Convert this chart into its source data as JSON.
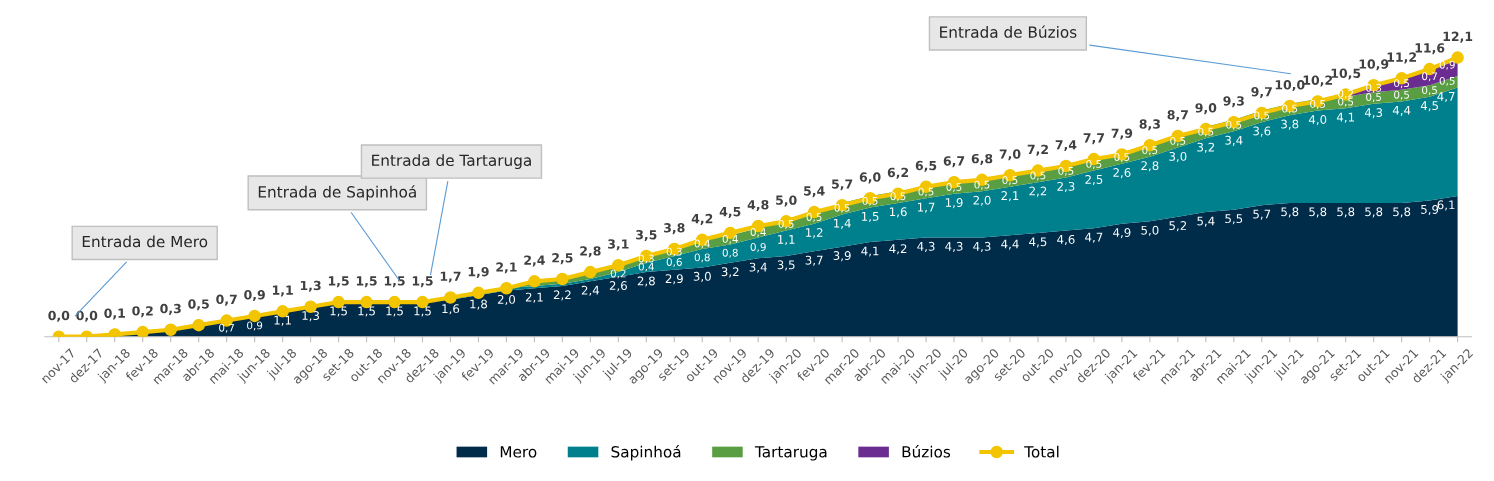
{
  "chart_data": {
    "type": "area",
    "stacked": true,
    "categories": [
      "nov-17",
      "dez-17",
      "jan-18",
      "fev-18",
      "mar-18",
      "abr-18",
      "mai-18",
      "jun-18",
      "jul-18",
      "ago-18",
      "set-18",
      "out-18",
      "nov-18",
      "dez-18",
      "jan-19",
      "fev-19",
      "mar-19",
      "abr-19",
      "mai-19",
      "jun-19",
      "jul-19",
      "ago-19",
      "set-19",
      "out-19",
      "nov-19",
      "dez-19",
      "jan-20",
      "fev-20",
      "mar-20",
      "abr-20",
      "mai-20",
      "jun-20",
      "jul-20",
      "ago-20",
      "set-20",
      "out-20",
      "nov-20",
      "dez-20",
      "jan-21",
      "fev-21",
      "mar-21",
      "abr-21",
      "mai-21",
      "jun-21",
      "jul-21",
      "ago-21",
      "set-21",
      "out-21",
      "nov-21",
      "dez-21",
      "jan-22"
    ],
    "series": [
      {
        "name": "Mero",
        "color": "#002b49",
        "values": [
          0.0,
          0.0,
          0.1,
          0.2,
          0.3,
          0.5,
          0.7,
          0.9,
          1.1,
          1.3,
          1.5,
          1.5,
          1.5,
          1.5,
          1.6,
          1.8,
          2.0,
          2.1,
          2.2,
          2.4,
          2.6,
          2.8,
          2.9,
          3.0,
          3.2,
          3.4,
          3.5,
          3.7,
          3.9,
          4.1,
          4.2,
          4.3,
          4.3,
          4.3,
          4.4,
          4.5,
          4.6,
          4.7,
          4.9,
          5.0,
          5.2,
          5.4,
          5.5,
          5.7,
          5.8,
          5.8,
          5.8,
          5.8,
          5.8,
          5.9,
          6.1
        ],
        "value_labels": [
          null,
          null,
          null,
          null,
          null,
          null,
          "0,7",
          "0,9",
          "1,1",
          "1,3",
          "1,5",
          "1,5",
          "1,5",
          "1,5",
          "1,6",
          "1,8",
          "2,0",
          "2,1",
          "2,2",
          "2,4",
          "2,6",
          "2,8",
          "2,9",
          "3,0",
          "3,2",
          "3,4",
          "3,5",
          "3,7",
          "3,9",
          "4,1",
          "4,2",
          "4,3",
          "4,3",
          "4,3",
          "4,4",
          "4,5",
          "4,6",
          "4,7",
          "4,9",
          "5,0",
          "5,2",
          "5,4",
          "5,5",
          "5,7",
          "5,8",
          "5,8",
          "5,8",
          "5,8",
          "5,8",
          "5,9",
          "6,1"
        ]
      },
      {
        "name": "Sapinhoá",
        "color": "#007f8c",
        "values": [
          null,
          null,
          null,
          null,
          null,
          null,
          null,
          null,
          null,
          null,
          null,
          null,
          0.0,
          0.0,
          0.1,
          0.1,
          0.1,
          0.1,
          0.1,
          0.1,
          0.2,
          0.4,
          0.6,
          0.8,
          0.8,
          0.9,
          1.1,
          1.2,
          1.4,
          1.5,
          1.6,
          1.7,
          1.9,
          2.0,
          2.1,
          2.2,
          2.3,
          2.5,
          2.6,
          2.8,
          3.0,
          3.2,
          3.4,
          3.6,
          3.8,
          4.0,
          4.1,
          4.3,
          4.4,
          4.5,
          4.7
        ],
        "value_labels": [
          null,
          null,
          null,
          null,
          null,
          null,
          null,
          null,
          null,
          null,
          null,
          null,
          null,
          null,
          null,
          null,
          null,
          null,
          null,
          null,
          "0,2",
          "0,4",
          "0,6",
          "0,8",
          "0,8",
          "0,9",
          "1,1",
          "1,2",
          "1,4",
          "1,5",
          "1,6",
          "1,7",
          "1,9",
          "2,0",
          "2,1",
          "2,2",
          "2,3",
          "2,5",
          "2,6",
          "2,8",
          "3,0",
          "3,2",
          "3,4",
          "3,6",
          "3,8",
          "4,0",
          "4,1",
          "4,3",
          "4,4",
          "4,5",
          "4,7"
        ]
      },
      {
        "name": "Tartaruga",
        "color": "#5a9e44",
        "values": [
          null,
          null,
          null,
          null,
          null,
          null,
          null,
          null,
          null,
          null,
          null,
          null,
          null,
          null,
          0.0,
          0.0,
          0.0,
          0.2,
          0.2,
          0.3,
          0.3,
          0.3,
          0.3,
          0.4,
          0.4,
          0.4,
          0.5,
          0.5,
          0.5,
          0.5,
          0.5,
          0.5,
          0.5,
          0.5,
          0.5,
          0.5,
          0.5,
          0.5,
          0.5,
          0.5,
          0.5,
          0.5,
          0.5,
          0.5,
          0.5,
          0.5,
          0.5,
          0.5,
          0.5,
          0.5,
          0.5
        ],
        "value_labels": [
          null,
          null,
          null,
          null,
          null,
          null,
          null,
          null,
          null,
          null,
          null,
          null,
          null,
          null,
          null,
          null,
          null,
          null,
          null,
          null,
          null,
          "0,3",
          "0,3",
          "0,4",
          "0,4",
          "0,4",
          "0,5",
          "0,5",
          "0,5",
          "0,5",
          "0,5",
          "0,5",
          "0,5",
          "0,5",
          "0,5",
          "0,5",
          "0,5",
          "0,5",
          "0,5",
          "0,5",
          "0,5",
          "0,5",
          "0,5",
          "0,5",
          "0,5",
          "0,5",
          "0,5",
          "0,5",
          "0,5",
          "0,5",
          "0,5"
        ]
      },
      {
        "name": "Búzios",
        "color": "#6b2c91",
        "values": [
          null,
          null,
          null,
          null,
          null,
          null,
          null,
          null,
          null,
          null,
          null,
          null,
          null,
          null,
          null,
          null,
          null,
          null,
          null,
          null,
          null,
          null,
          null,
          null,
          null,
          null,
          null,
          null,
          null,
          null,
          null,
          null,
          null,
          null,
          null,
          null,
          null,
          null,
          null,
          null,
          null,
          null,
          null,
          null,
          null,
          null,
          0.2,
          0.3,
          0.5,
          0.7,
          0.9
        ],
        "value_labels": [
          null,
          null,
          null,
          null,
          null,
          null,
          null,
          null,
          null,
          null,
          null,
          null,
          null,
          null,
          null,
          null,
          null,
          null,
          null,
          null,
          null,
          null,
          null,
          null,
          null,
          null,
          null,
          null,
          null,
          null,
          null,
          null,
          null,
          null,
          null,
          null,
          null,
          null,
          null,
          null,
          null,
          null,
          null,
          null,
          null,
          null,
          "0,2",
          "0,3",
          "0,5",
          "0,7",
          "0,9"
        ]
      },
      {
        "name": "Total",
        "type": "line",
        "color": "#f2c500",
        "marker": "circle",
        "values": [
          0.0,
          0.0,
          0.1,
          0.2,
          0.3,
          0.5,
          0.7,
          0.9,
          1.1,
          1.3,
          1.5,
          1.5,
          1.5,
          1.5,
          1.7,
          1.9,
          2.1,
          2.4,
          2.5,
          2.8,
          3.1,
          3.5,
          3.8,
          4.2,
          4.5,
          4.8,
          5.0,
          5.4,
          5.7,
          6.0,
          6.2,
          6.5,
          6.7,
          6.8,
          7.0,
          7.2,
          7.4,
          7.7,
          7.9,
          8.3,
          8.7,
          9.0,
          9.3,
          9.7,
          10.0,
          10.2,
          10.5,
          10.9,
          11.2,
          11.6,
          12.1
        ],
        "value_labels": [
          "0,0",
          "0,0",
          "0,1",
          "0,2",
          "0,3",
          "0,5",
          "0,7",
          "0,9",
          "1,1",
          "1,3",
          "1,5",
          "1,5",
          "1,5",
          "1,5",
          "1,7",
          "1,9",
          "2,1",
          "2,4",
          "2,5",
          "2,8",
          "3,1",
          "3,5",
          "3,8",
          "4,2",
          "4,5",
          "4,8",
          "5,0",
          "5,4",
          "5,7",
          "6,0",
          "6,2",
          "6,5",
          "6,7",
          "6,8",
          "7,0",
          "7,2",
          "7,4",
          "7,7",
          "7,9",
          "8,3",
          "8,7",
          "9,0",
          "9,3",
          "9,7",
          "10,0",
          "10,2",
          "10,5",
          "10,9",
          "11,2",
          "11,6",
          "12,1"
        ]
      }
    ],
    "annotations": [
      "Entrada de Mero",
      "Entrada de Sapinhoá",
      "Entrada de Tartaruga",
      "Entrada de Búzios"
    ],
    "tick_labels": "x",
    "grid": false,
    "legend": "bottom"
  }
}
